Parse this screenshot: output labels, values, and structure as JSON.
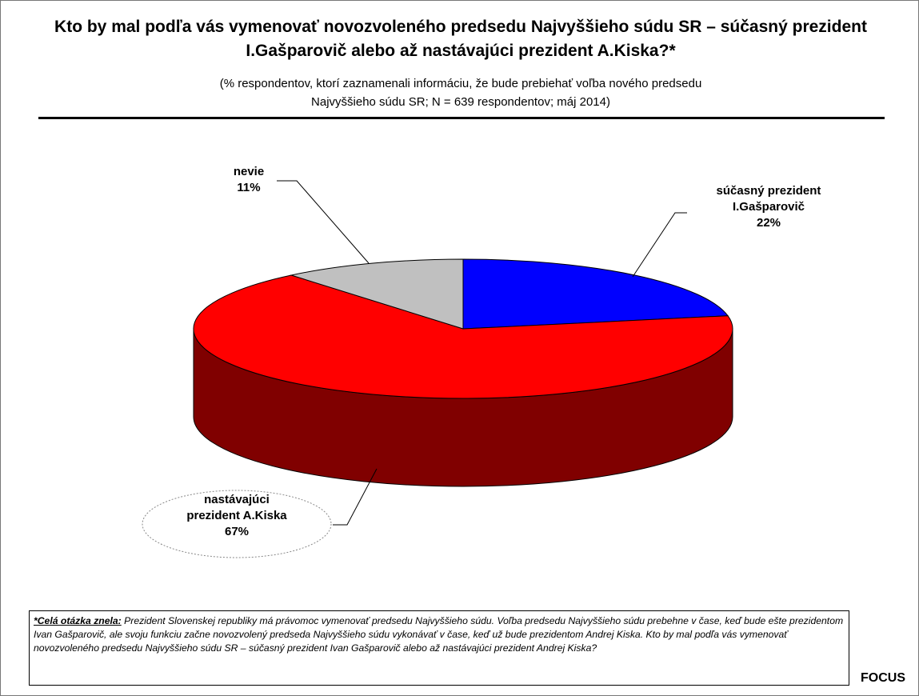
{
  "chart_data": {
    "type": "pie",
    "title": "Kto by mal podľa vás vymenovať novozvoleného predsedu Najvyššieho súdu SR – súčasný prezident I.Gašparovič alebo až nastávajúci prezident A.Kiska?*",
    "subtitle": "(% respondentov, ktorí zaznamenali informáciu, že bude prebiehať voľba nového predsedu Najvyššieho súdu SR; N = 639 respondentov; máj 2014)",
    "categories": [
      "súčasný prezident I.Gašparovič",
      "nastávajúci prezident A.Kiska",
      "nevie"
    ],
    "values": [
      22,
      67,
      11
    ],
    "value_labels": [
      "22%",
      "67%",
      "11%"
    ],
    "colors": [
      "#0000ff",
      "#ff0000",
      "#c0c0c0"
    ],
    "note_label": "*Celá otázka znela:",
    "note": "Prezident Slovenskej republiky má právomoc vymenovať predsedu Najvyššieho súdu. Voľba predsedu Najvyššieho súdu prebehne v čase, keď bude ešte prezidentom Ivan Gašparovič, ale svoju funkciu začne novozvolený predseda Najvyššieho súdu vykonávať v čase, keď už bude prezidentom Andrej Kiska. Kto by mal podľa vás vymenovať novozvoleného predsedu Najvyššieho súdu SR – súčasný prezident Ivan Gašparovič alebo až nastávajúci prezident Andrej Kiska?",
    "source": "FOCUS"
  }
}
